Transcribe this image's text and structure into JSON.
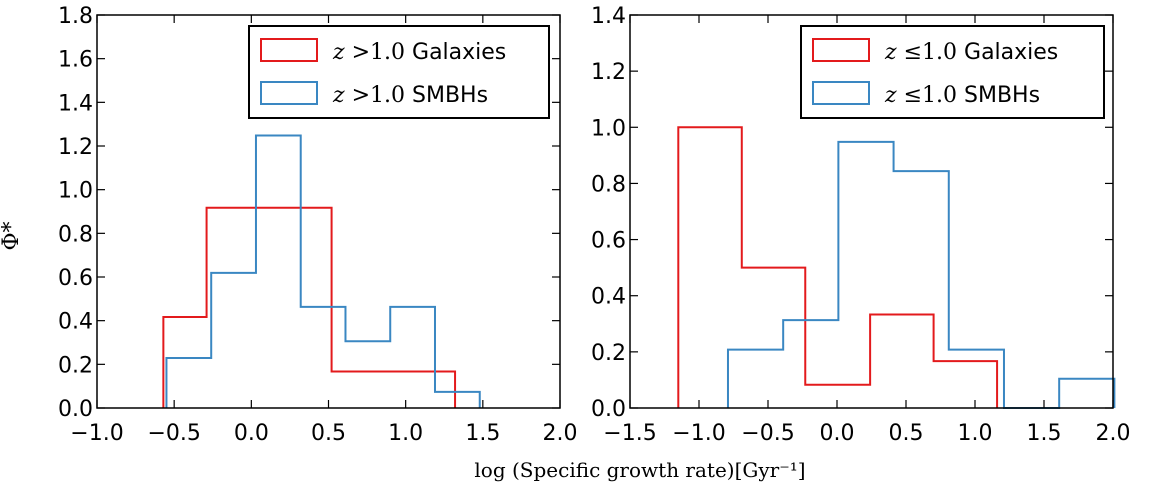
{
  "figure": {
    "ylabel": "Φ*",
    "xlabel": "log (Specific growth rate)[Gyr⁻¹]"
  },
  "colors": {
    "galaxies": "#e31a1c",
    "smbhs": "#3a87c2"
  },
  "chart_data": [
    {
      "type": "histogram",
      "panel": "left",
      "xlim": [
        -1.0,
        2.0
      ],
      "ylim": [
        0.0,
        1.8
      ],
      "xticks": [
        "−1.0",
        "−0.5",
        "0.0",
        "0.5",
        "1.0",
        "1.5",
        "2.0"
      ],
      "xtick_values": [
        -1.0,
        -0.5,
        0.0,
        0.5,
        1.0,
        1.5,
        2.0
      ],
      "yticks": [
        "0.0",
        "0.2",
        "0.4",
        "0.6",
        "0.8",
        "1.0",
        "1.2",
        "1.4",
        "1.6",
        "1.8"
      ],
      "ytick_values": [
        0.0,
        0.2,
        0.4,
        0.6,
        0.8,
        1.0,
        1.2,
        1.4,
        1.6,
        1.8
      ],
      "legend_position": "top-right",
      "series": [
        {
          "name": "z >1.0 Galaxies",
          "name_z": "z",
          "name_rel": ">1.0",
          "name_suffix": "Galaxies",
          "color": "#e31a1c",
          "bin_edges": [
            -0.57,
            -0.29,
            0.52,
            1.32
          ],
          "values": [
            0.417,
            0.917,
            0.167
          ]
        },
        {
          "name": "z >1.0 SMBHs",
          "name_z": "z",
          "name_rel": ">1.0",
          "name_suffix": "SMBHs",
          "color": "#3a87c2",
          "bin_edges": [
            -0.55,
            -0.26,
            0.03,
            0.32,
            0.61,
            0.9,
            1.19,
            1.48
          ],
          "values": [
            0.229,
            0.619,
            1.248,
            0.463,
            0.306,
            0.463,
            0.074
          ]
        }
      ]
    },
    {
      "type": "histogram",
      "panel": "right",
      "xlim": [
        -1.5,
        2.0
      ],
      "ylim": [
        0.0,
        1.4
      ],
      "xticks": [
        "−1.5",
        "−1.0",
        "−0.5",
        "0.0",
        "0.5",
        "1.0",
        "1.5",
        "2.0"
      ],
      "xtick_values": [
        -1.5,
        -1.0,
        -0.5,
        0.0,
        0.5,
        1.0,
        1.5,
        2.0
      ],
      "yticks": [
        "0.0",
        "0.2",
        "0.4",
        "0.6",
        "0.8",
        "1.0",
        "1.2",
        "1.4"
      ],
      "ytick_values": [
        0.0,
        0.2,
        0.4,
        0.6,
        0.8,
        1.0,
        1.2,
        1.4
      ],
      "legend_position": "top-right",
      "series": [
        {
          "name": "z ≤1.0 Galaxies",
          "name_z": "z",
          "name_rel": "≤1.0",
          "name_suffix": "Galaxies",
          "color": "#e31a1c",
          "bin_edges": [
            -1.15,
            -0.69,
            -0.23,
            0.24,
            0.7,
            1.16
          ],
          "values": [
            1.0,
            0.5,
            0.083,
            0.333,
            0.167
          ]
        },
        {
          "name": "z ≤1.0 SMBHs",
          "name_z": "z",
          "name_rel": "≤1.0",
          "name_suffix": "SMBHs",
          "color": "#3a87c2",
          "bin_edges": [
            -0.79,
            -0.39,
            0.01,
            0.41,
            0.81,
            1.21,
            1.61,
            2.01
          ],
          "values": [
            0.208,
            0.313,
            0.948,
            0.844,
            0.208,
            0.0,
            0.104
          ]
        }
      ]
    }
  ]
}
